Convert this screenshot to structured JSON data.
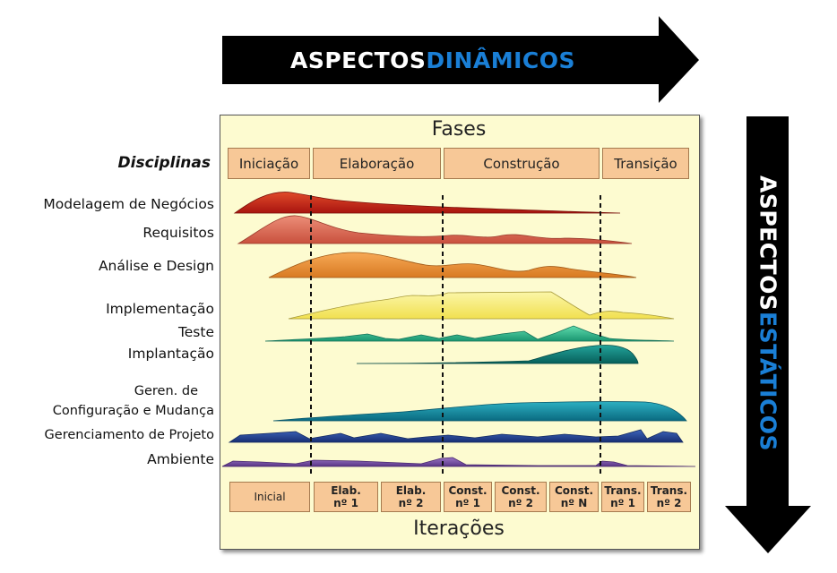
{
  "top_arrow": {
    "text_plain": "ASPECTOS ",
    "text_accent": "DINÂMICOS"
  },
  "side_arrow": {
    "text_plain": "ASPECTOS ",
    "text_accent": "ESTÁTICOS"
  },
  "fases_title": "Fases",
  "iteracoes_title": "Iterações",
  "disciplinas_header": "Disciplinas",
  "phases": [
    "Iniciação",
    "Elaboração",
    "Construção",
    "Transição"
  ],
  "iterations": [
    {
      "line1": "Inicial",
      "line2": ""
    },
    {
      "line1": "Elab.",
      "line2": "nº 1"
    },
    {
      "line1": "Elab.",
      "line2": "nº 2"
    },
    {
      "line1": "Const.",
      "line2": "nº 1"
    },
    {
      "line1": "Const.",
      "line2": "nº 2"
    },
    {
      "line1": "Const.",
      "line2": "nº N"
    },
    {
      "line1": "Trans.",
      "line2": "nº 1"
    },
    {
      "line1": "Trans.",
      "line2": "nº 2"
    }
  ],
  "disciplines": [
    {
      "label": "Modelagem de Negócios",
      "color": "#c0281e"
    },
    {
      "label": "Requisitos",
      "color": "#d96a55"
    },
    {
      "label": "Análise e Design",
      "color": "#e8913c"
    },
    {
      "label": "Implementação",
      "color": "#f6ec74"
    },
    {
      "label": "Teste",
      "color": "#2cb88b"
    },
    {
      "label": "Implantação",
      "color": "#0f7f78"
    },
    {
      "label": "Geren. de Configuração e Mudança",
      "line1": "Geren. de",
      "line2": "Configuração e Mudança",
      "color": "#10889c"
    },
    {
      "label": "Gerenciamento de Projeto",
      "color": "#24479a"
    },
    {
      "label": "Ambiente",
      "color": "#7a4fa6"
    }
  ],
  "colors": {
    "arrow": "#000000",
    "accent": "#1a7fd6",
    "panel": "#fdfbd0",
    "box": "#f7c897"
  }
}
